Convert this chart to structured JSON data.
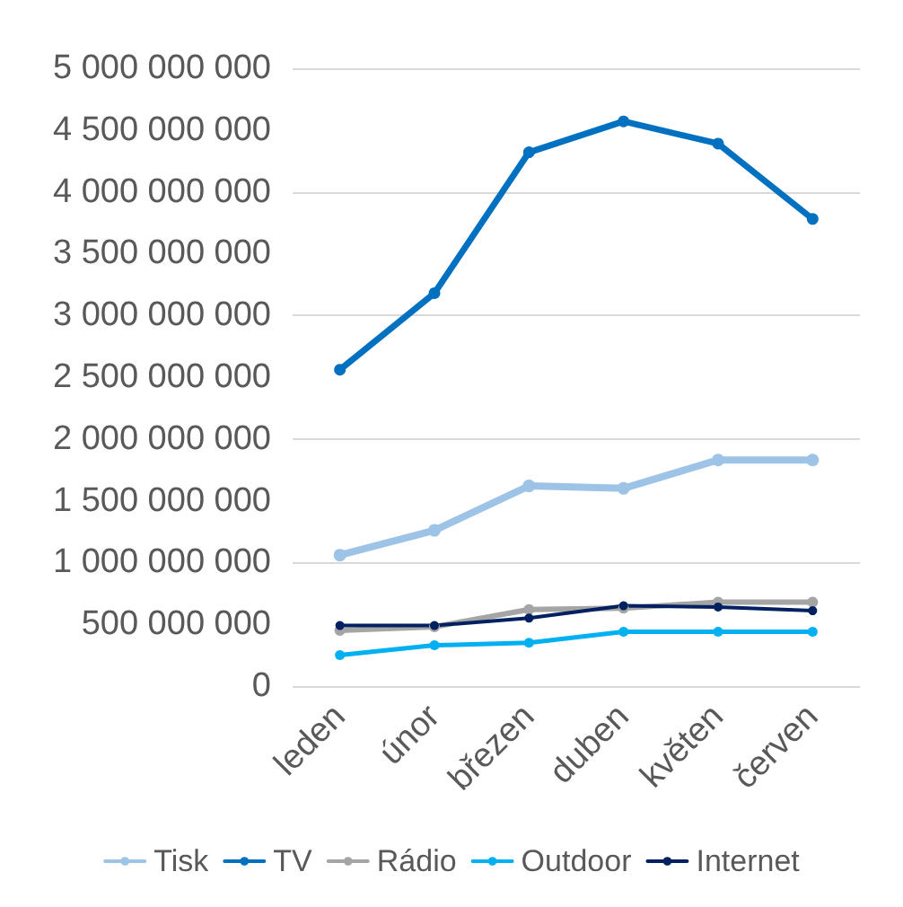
{
  "chart_data": {
    "type": "line",
    "categories": [
      "leden",
      "únor",
      "březen",
      "duben",
      "květen",
      "červen"
    ],
    "series": [
      {
        "name": "Tisk",
        "color": "#9dc3e6",
        "values": [
          1060000000,
          1260000000,
          1620000000,
          1600000000,
          1830000000,
          1830000000
        ]
      },
      {
        "name": "TV",
        "color": "#0070c0",
        "values": [
          2560000000,
          3180000000,
          4320000000,
          4570000000,
          4390000000,
          3780000000
        ]
      },
      {
        "name": "Rádio",
        "color": "#a5a5a5",
        "values": [
          450000000,
          480000000,
          620000000,
          630000000,
          680000000,
          680000000
        ]
      },
      {
        "name": "Outdoor",
        "color": "#00b0f0",
        "values": [
          250000000,
          330000000,
          350000000,
          440000000,
          440000000,
          440000000
        ]
      },
      {
        "name": "Internet",
        "color": "#002060",
        "values": [
          490000000,
          490000000,
          550000000,
          650000000,
          640000000,
          610000000
        ]
      }
    ],
    "ylim": [
      0,
      5000000000
    ],
    "yticks": [
      0,
      {
        "value": 500000000,
        "label": "500 000 000"
      },
      {
        "value": 1000000000,
        "label": "1 000 000 000"
      },
      {
        "value": 1500000000,
        "label": "1 500 000 000"
      },
      {
        "value": 2000000000,
        "label": "2 000 000 000"
      },
      {
        "value": 2500000000,
        "label": "2 500 000 000"
      },
      {
        "value": 3000000000,
        "label": "3 000 000 000"
      },
      {
        "value": 3500000000,
        "label": "3 500 000 000"
      },
      {
        "value": 4000000000,
        "label": "4 000 000 000"
      },
      {
        "value": 4500000000,
        "label": "4 500 000 000"
      },
      {
        "value": 5000000000,
        "label": "5 000 000 000"
      }
    ],
    "grid": "y",
    "legend": "bottom",
    "marker": "circle",
    "line_style": "solid"
  }
}
